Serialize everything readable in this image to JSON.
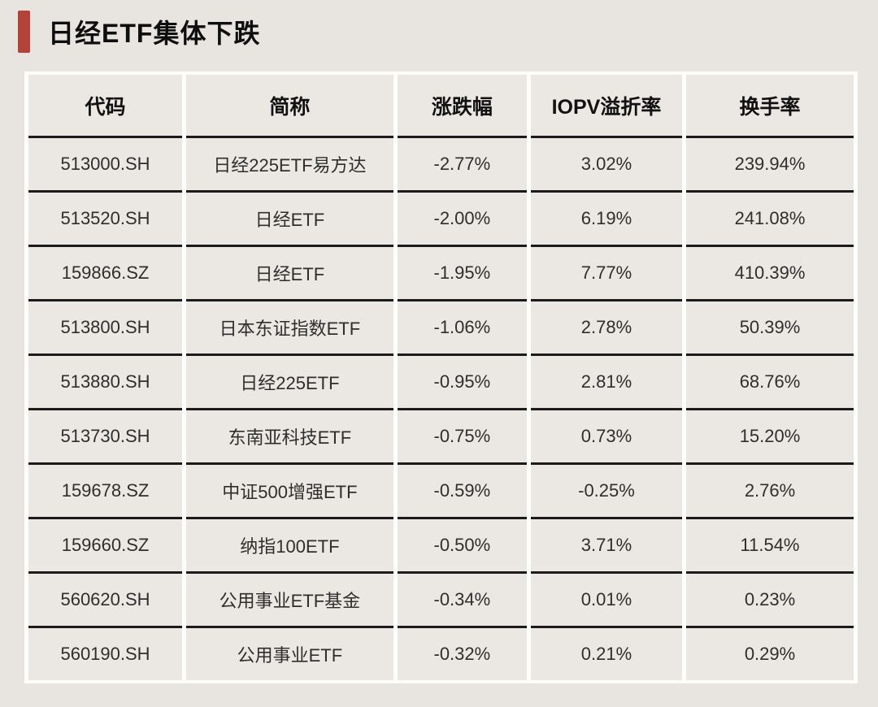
{
  "header": {
    "title": "日经ETF集体下跌"
  },
  "colors": {
    "accent_bar": "#b2423a",
    "page_background": "#e8e5e0",
    "cell_background": "#ebe8e3",
    "grid_white": "#fdfdfc",
    "row_separator": "#1b1b1b"
  },
  "chart_data": {
    "type": "table",
    "title": "日经ETF集体下跌",
    "columns": [
      "代码",
      "简称",
      "涨跌幅",
      "IOPV溢折率",
      "换手率"
    ],
    "column_keys": [
      "code",
      "name",
      "change",
      "iopv-premium",
      "turnover"
    ],
    "rows": [
      [
        "513000.SH",
        "日经225ETF易方达",
        "-2.77%",
        "3.02%",
        "239.94%"
      ],
      [
        "513520.SH",
        "日经ETF",
        "-2.00%",
        "6.19%",
        "241.08%"
      ],
      [
        "159866.SZ",
        "日经ETF",
        "-1.95%",
        "7.77%",
        "410.39%"
      ],
      [
        "513800.SH",
        "日本东证指数ETF",
        "-1.06%",
        "2.78%",
        "50.39%"
      ],
      [
        "513880.SH",
        "日经225ETF",
        "-0.95%",
        "2.81%",
        "68.76%"
      ],
      [
        "513730.SH",
        "东南亚科技ETF",
        "-0.75%",
        "0.73%",
        "15.20%"
      ],
      [
        "159678.SZ",
        "中证500增强ETF",
        "-0.59%",
        "-0.25%",
        "2.76%"
      ],
      [
        "159660.SZ",
        "纳指100ETF",
        "-0.50%",
        "3.71%",
        "11.54%"
      ],
      [
        "560620.SH",
        "公用事业ETF基金",
        "-0.34%",
        "0.01%",
        "0.23%"
      ],
      [
        "560190.SH",
        "公用事业ETF",
        "-0.32%",
        "0.21%",
        "0.29%"
      ]
    ]
  }
}
